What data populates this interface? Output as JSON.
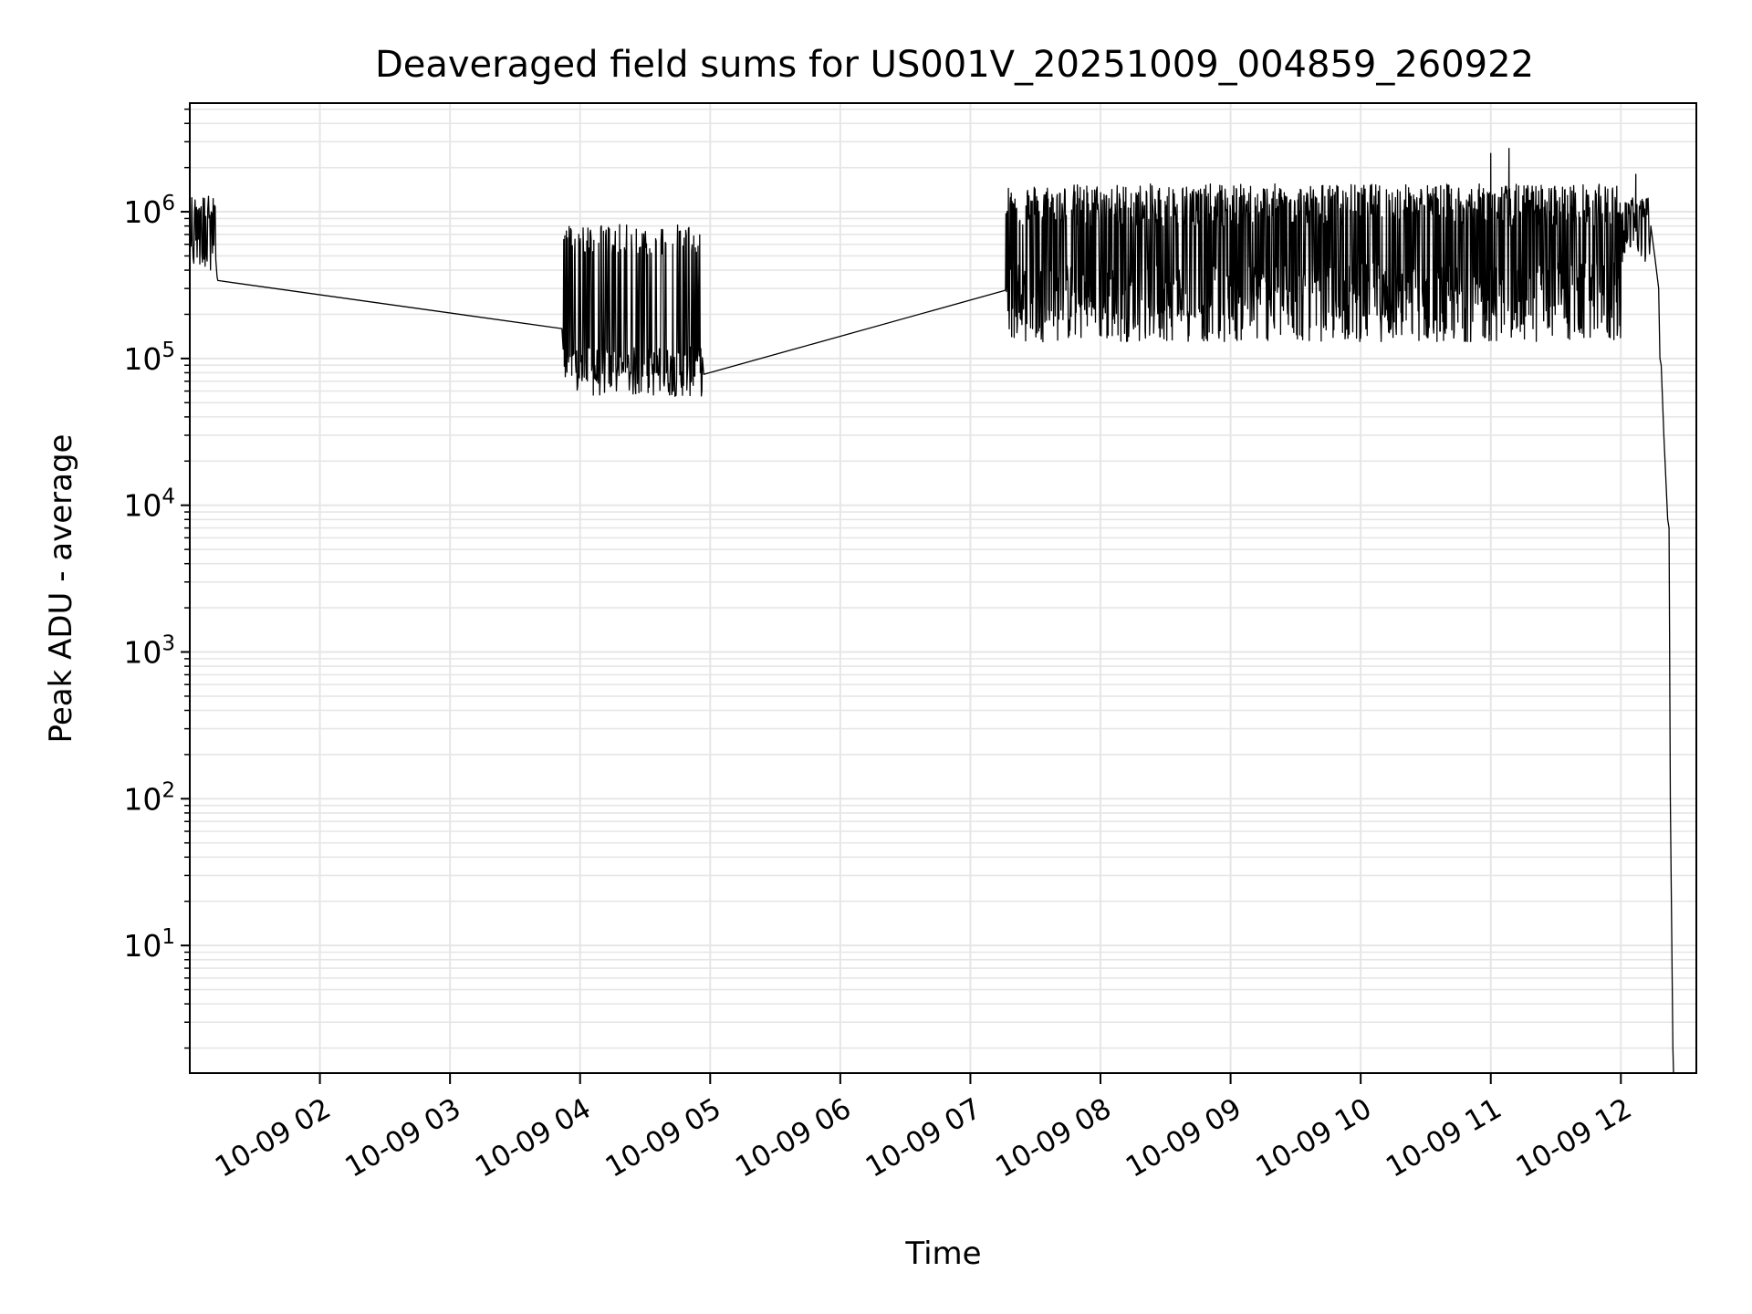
{
  "chart_data": {
    "type": "line",
    "title": "Deaveraged field sums for US001V_20251009_004859_260922",
    "xlabel": "Time",
    "ylabel": "Peak ADU - average",
    "x_unit": "hours of day 2025-10-09",
    "xlim": [
      1.0,
      12.58
    ],
    "ylim": [
      1.35,
      5500000
    ],
    "yscale": "log",
    "grid": "major+minor",
    "legend": "none",
    "line_color": "#000000",
    "grid_color": "#e6e6e6",
    "x_ticks": [
      {
        "value": 2,
        "label": "10-09 02"
      },
      {
        "value": 3,
        "label": "10-09 03"
      },
      {
        "value": 4,
        "label": "10-09 04"
      },
      {
        "value": 5,
        "label": "10-09 05"
      },
      {
        "value": 6,
        "label": "10-09 06"
      },
      {
        "value": 7,
        "label": "10-09 07"
      },
      {
        "value": 8,
        "label": "10-09 08"
      },
      {
        "value": 9,
        "label": "10-09 09"
      },
      {
        "value": 10,
        "label": "10-09 10"
      },
      {
        "value": 11,
        "label": "10-09 11"
      },
      {
        "value": 12,
        "label": "10-09 12"
      }
    ],
    "y_ticks": [
      {
        "value": 10,
        "base": "10",
        "exp": "1"
      },
      {
        "value": 100,
        "base": "10",
        "exp": "2"
      },
      {
        "value": 1000,
        "base": "10",
        "exp": "3"
      },
      {
        "value": 10000,
        "base": "10",
        "exp": "4"
      },
      {
        "value": 100000,
        "base": "10",
        "exp": "5"
      },
      {
        "value": 1000000,
        "base": "10",
        "exp": "6"
      }
    ],
    "segments": [
      {
        "kind": "noisy",
        "start": 1.0,
        "end": 1.2,
        "samples": 40,
        "low": [
          400000,
          700000
        ],
        "high": [
          900000,
          1300000
        ],
        "spike_prob": 0.6
      },
      {
        "kind": "points",
        "x": [
          1.21,
          1.215,
          3.86
        ],
        "y": [
          360000,
          340000,
          160000
        ]
      },
      {
        "kind": "noisy",
        "start": 3.87,
        "end": 4.94,
        "samples": 260,
        "low": [
          55000,
          120000
        ],
        "high": [
          500000,
          820000
        ],
        "spike_prob": 0.35
      },
      {
        "kind": "points",
        "x": [
          4.95,
          7.26
        ],
        "y": [
          78000,
          290000
        ]
      },
      {
        "kind": "noisy",
        "start": 7.27,
        "end": 12.0,
        "samples": 1500,
        "low": [
          130000,
          450000
        ],
        "high": [
          800000,
          1550000
        ],
        "spike_prob": 0.5
      },
      {
        "kind": "points",
        "x": [
          10.99,
          11.0,
          11.01,
          11.13,
          11.14,
          11.15
        ],
        "y": [
          600000,
          2500000,
          700000,
          500000,
          2700000,
          800000
        ],
        "inject": true
      },
      {
        "kind": "noisy",
        "start": 12.0,
        "end": 12.22,
        "samples": 60,
        "low": [
          450000,
          800000
        ],
        "high": [
          900000,
          1250000
        ],
        "spike_prob": 0.5
      },
      {
        "kind": "points",
        "x": [
          12.11,
          12.115,
          12.12
        ],
        "y": [
          900000,
          1800000,
          950000
        ],
        "inject": true
      },
      {
        "kind": "points",
        "x": [
          12.23,
          12.26,
          12.29,
          12.3,
          12.31,
          12.33,
          12.355,
          12.36,
          12.37,
          12.38,
          12.4,
          12.405
        ],
        "y": [
          800000,
          500000,
          300000,
          100000,
          90000,
          30000,
          10000,
          8000,
          7000,
          100,
          2,
          1.35
        ]
      }
    ]
  }
}
